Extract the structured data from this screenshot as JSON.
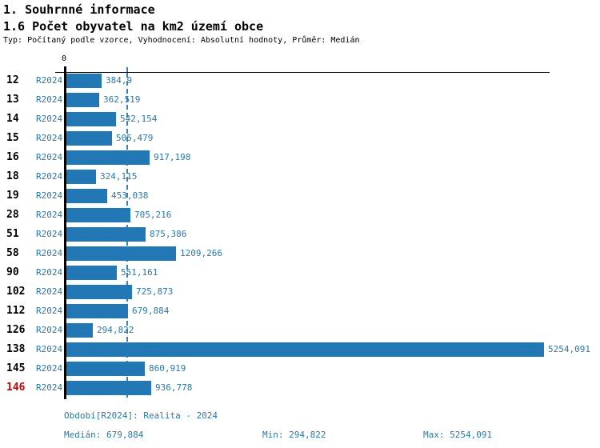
{
  "header": {
    "title": "1. Souhrnné informace",
    "subtitle": "1.6 Počet obyvatel na km2 území obce",
    "meta": "Typ: Počítaný podle vzorce, Vyhodnocení: Absolutní hodnoty, Průměr: Medián"
  },
  "chart_data": {
    "type": "bar",
    "orientation": "horizontal",
    "title": "1.6 Počet obyvatel na km2 území obce",
    "xlabel": "",
    "ylabel": "",
    "axis": {
      "origin_label": "0",
      "min": 0,
      "max": 5254.091
    },
    "grid": false,
    "series_label": "R2024",
    "categories": [
      "12",
      "13",
      "14",
      "15",
      "16",
      "18",
      "19",
      "28",
      "51",
      "58",
      "90",
      "102",
      "112",
      "126",
      "138",
      "145",
      "146"
    ],
    "values": [
      384.9,
      362.519,
      542.154,
      505.479,
      917.198,
      324.115,
      453.038,
      705.216,
      875.386,
      1209.266,
      551.161,
      725.873,
      679.884,
      294.822,
      5254.091,
      860.919,
      936.778
    ],
    "value_labels": [
      "384,9",
      "362,519",
      "542,154",
      "505,479",
      "917,198",
      "324,115",
      "453,038",
      "705,216",
      "875,386",
      "1209,266",
      "551,161",
      "725,873",
      "679,884",
      "294,822",
      "5254,091",
      "860,919",
      "936,778"
    ],
    "highlighted_category": "146",
    "median_marker": {
      "value": 679.884,
      "style": "dashed"
    },
    "colors": {
      "bar": "#2278B5",
      "label_text": "#2779B0",
      "axis": "#000000",
      "highlighted_category_color": "#CC0000",
      "median_line": "#3585BC"
    }
  },
  "footer": {
    "period": "Období[R2024]: Realita - 2024",
    "median": "Medián: 679,884",
    "min": "Min: 294,822",
    "max": "Max: 5254,091"
  }
}
